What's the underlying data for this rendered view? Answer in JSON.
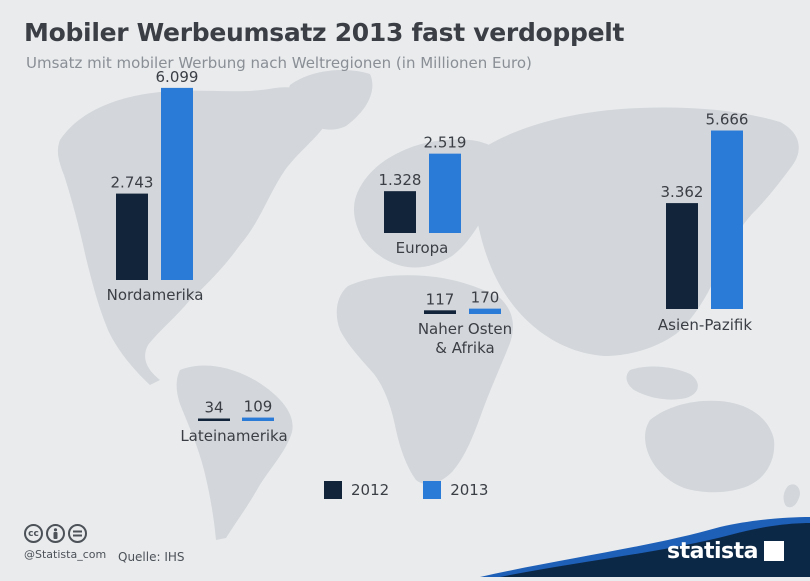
{
  "title": "Mobiler Werbeumsatz 2013 fast verdoppelt",
  "subtitle": "Umsatz mit mobiler Werbung nach Weltregionen (in Millionen Euro)",
  "colors": {
    "y2012": "#12243a",
    "y2013": "#2a7ad8",
    "map": "#d3d6da",
    "background": "#e9ebed"
  },
  "chart_data": {
    "type": "bar",
    "title": "Mobiler Werbeumsatz 2013 fast verdoppelt",
    "subtitle": "Umsatz mit mobiler Werbung nach Weltregionen (in Millionen Euro)",
    "categories": [
      "Nordamerika",
      "Europa",
      "Naher Osten & Afrika",
      "Asien-Pazifik",
      "Lateinamerika"
    ],
    "series": [
      {
        "name": "2012",
        "values": [
          2743,
          1328,
          117,
          3362,
          34
        ],
        "labels": [
          "2.743",
          "1.328",
          "117",
          "3.362",
          "34"
        ]
      },
      {
        "name": "2013",
        "values": [
          6099,
          2519,
          170,
          5666,
          109
        ],
        "labels": [
          "6.099",
          "2.519",
          "170",
          "5.666",
          "109"
        ]
      }
    ],
    "region_labels": [
      "Nordamerika",
      "Europa",
      "Naher Osten\n& Afrika",
      "Asien-Pazifik",
      "Lateinamerika"
    ],
    "legend_position": "bottom-center"
  },
  "legend": {
    "label_2012": "2012",
    "label_2013": "2013"
  },
  "footer": {
    "cc_icons": [
      "cc-icon",
      "by-icon",
      "nd-icon"
    ],
    "cc_text": "cc",
    "handle": "@Statista_com",
    "source": "Quelle: IHS",
    "brand": "statista"
  }
}
